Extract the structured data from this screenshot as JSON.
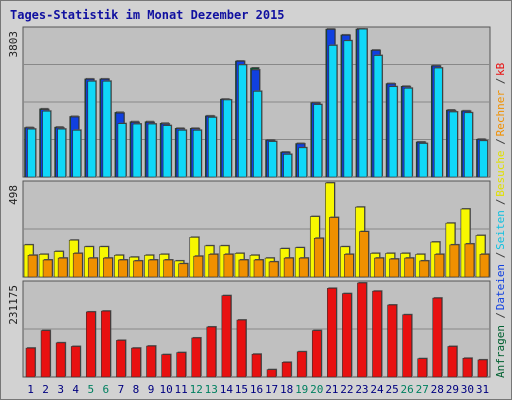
{
  "chart_data": {
    "type": "bar",
    "title": "Tages-Statistik im Monat Dezember 2015",
    "categories": [
      "1",
      "2",
      "3",
      "4",
      "5",
      "6",
      "7",
      "8",
      "9",
      "10",
      "11",
      "12",
      "13",
      "14",
      "15",
      "16",
      "17",
      "18",
      "19",
      "20",
      "21",
      "22",
      "23",
      "24",
      "25",
      "26",
      "27",
      "28",
      "29",
      "30",
      "31"
    ],
    "weekend_days": [
      "5",
      "6",
      "12",
      "13",
      "19",
      "20",
      "26",
      "27"
    ],
    "panels": [
      {
        "name": "top",
        "ymax_label": "3803",
        "ymax": 3803,
        "series": [
          {
            "name": "Anfragen",
            "color": "#006030",
            "values": [
              1270,
              1750,
              1280,
              1555,
              2520,
              2520,
              1660,
              1420,
              1420,
              1380,
              1250,
              1250,
              1570,
              2000,
              2980,
              2800,
              950,
              640,
              860,
              1910,
              3800,
              3650,
              3803,
              3260,
              2400,
              2330,
              900,
              2860,
              1720,
              1700,
              970
            ]
          },
          {
            "name": "Dateien",
            "color": "#1040e0",
            "values": [
              1260,
              1730,
              1260,
              1540,
              2510,
              2510,
              1640,
              1400,
              1400,
              1360,
              1240,
              1240,
              1560,
              1990,
              2970,
              2750,
              940,
              630,
              850,
              1900,
              3790,
              3640,
              3790,
              3250,
              2390,
              2320,
              890,
              2850,
              1700,
              1690,
              960
            ]
          },
          {
            "name": "Seiten",
            "color": "#10d8f8",
            "values": [
              1230,
              1690,
              1230,
              1200,
              2460,
              2460,
              1370,
              1360,
              1360,
              1320,
              1200,
              1200,
              1530,
              1980,
              2880,
              2200,
              910,
              580,
              750,
              1860,
              3380,
              3500,
              3800,
              3120,
              2320,
              2280,
              860,
              2800,
              1670,
              1650,
              930
            ]
          }
        ]
      },
      {
        "name": "middle",
        "ymax_label": "498",
        "ymax": 498,
        "series": [
          {
            "name": "Besuche",
            "color": "#f8f800",
            "values": [
              170,
              120,
              135,
              195,
              160,
              160,
              115,
              105,
              115,
              120,
              85,
              210,
              165,
              165,
              125,
              115,
              100,
              150,
              155,
              320,
              498,
              160,
              370,
              125,
              125,
              125,
              120,
              185,
              285,
              360,
              220
            ]
          },
          {
            "name": "Rechner",
            "color": "#f09000",
            "values": [
              115,
              90,
              100,
              125,
              100,
              100,
              90,
              85,
              90,
              90,
              70,
              110,
              120,
              120,
              90,
              90,
              80,
              100,
              100,
              205,
              315,
              120,
              240,
              100,
              95,
              100,
              85,
              120,
              170,
              175,
              120
            ]
          }
        ]
      },
      {
        "name": "bottom",
        "ymax_label": "231175",
        "ymax": 231175,
        "series": [
          {
            "name": "kB",
            "color": "#e81010",
            "values": [
              71000,
              114000,
              84000,
              75000,
              160000,
              162000,
              90000,
              71000,
              76000,
              55000,
              60000,
              96000,
              123000,
              200000,
              140000,
              56000,
              18000,
              36000,
              62000,
              114000,
              218000,
              205000,
              231175,
              211000,
              177000,
              153000,
              45000,
              194000,
              75000,
              46000,
              42000
            ]
          }
        ]
      }
    ],
    "right_labels": [
      {
        "text": "Anfragen",
        "color": "#006030"
      },
      {
        "text": "/",
        "color": "#404040"
      },
      {
        "text": "Dateien",
        "color": "#1040e0"
      },
      {
        "text": "/",
        "color": "#404040"
      },
      {
        "text": "Seiten",
        "color": "#10c0e0"
      },
      {
        "text": "/",
        "color": "#404040"
      },
      {
        "text": "Besuche",
        "color": "#e0e000"
      },
      {
        "text": "/",
        "color": "#404040"
      },
      {
        "text": "Rechner",
        "color": "#f09000"
      },
      {
        "text": "/",
        "color": "#404040"
      },
      {
        "text": "kB",
        "color": "#e81010"
      }
    ]
  }
}
